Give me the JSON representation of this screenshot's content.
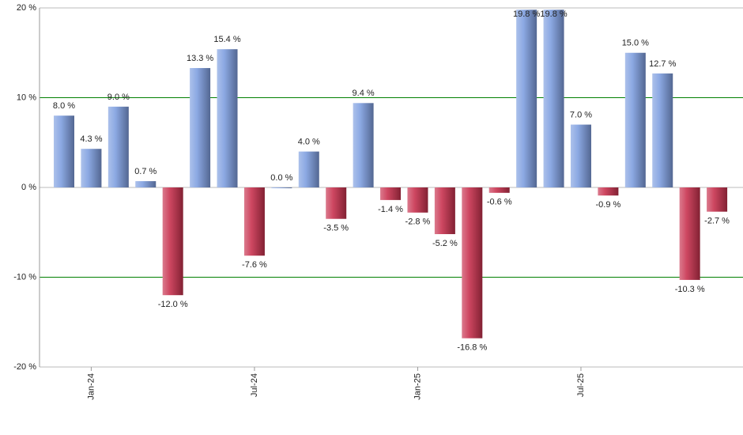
{
  "chart_data": {
    "type": "bar",
    "categories": [
      null,
      "Jan-24",
      null,
      null,
      null,
      null,
      null,
      "Jul-24",
      null,
      null,
      null,
      null,
      null,
      "Jan-25",
      null,
      null,
      null,
      null,
      null,
      "Jul-25",
      null,
      null,
      null,
      null,
      null
    ],
    "values": [
      8.0,
      4.3,
      9.0,
      0.7,
      -12.0,
      13.3,
      15.4,
      -7.6,
      0.0,
      4.0,
      -3.5,
      9.4,
      -1.4,
      -2.8,
      -5.2,
      -16.8,
      -0.6,
      19.8,
      19.8,
      7.0,
      -0.9,
      15.0,
      12.7,
      -10.3,
      -2.7
    ],
    "value_labels": [
      "8.0 %",
      "4.3 %",
      "9.0 %",
      "0.7 %",
      "-12.0 %",
      "13.3 %",
      "15.4 %",
      "-7.6 %",
      "0.0 %",
      "4.0 %",
      "-3.5 %",
      "9.4 %",
      "-1.4 %",
      "-2.8 %",
      "-5.2 %",
      "-16.8 %",
      "-0.6 %",
      "19.8 %",
      "19.8 %",
      "7.0 %",
      "-0.9 %",
      "15.0 %",
      "12.7 %",
      "-10.3 %",
      "-2.7 %"
    ],
    "colors": {
      "positive": "#7f9fe0",
      "negative": "#c8334f"
    },
    "ylim": [
      -20,
      20
    ],
    "yticks": [
      {
        "value": -20,
        "label": "-20 %"
      },
      {
        "value": -10,
        "label": "-10 %"
      },
      {
        "value": 0,
        "label": "0 %"
      },
      {
        "value": 10,
        "label": "10 %"
      },
      {
        "value": 20,
        "label": "20 %"
      }
    ],
    "grid": true,
    "grid_color": "#008000"
  }
}
